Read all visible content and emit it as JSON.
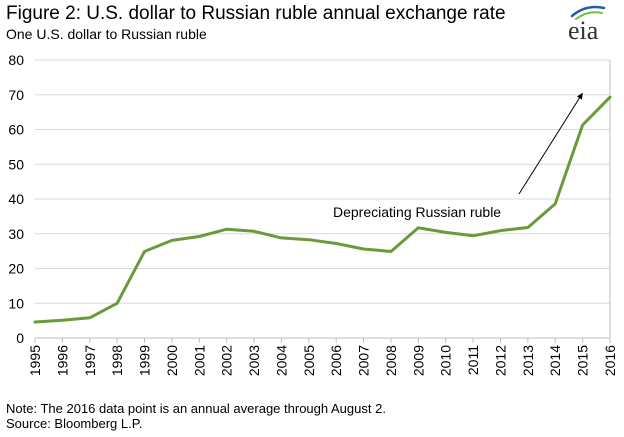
{
  "header": {
    "title": "Figure 2: U.S. dollar to Russian ruble annual exchange rate",
    "subtitle": "One U.S. dollar to Russian ruble",
    "logo_text": "eia"
  },
  "footer": {
    "note": "Note: The 2016 data point is an annual average through August 2.",
    "source": "Source: Bloomberg L.P."
  },
  "colors": {
    "series": "#6a9a3a",
    "gridline": "#d9d9d9",
    "axis": "#bfbfbf",
    "logo_blue": "#1f5fa6",
    "logo_green": "#6fbf3f"
  },
  "chart_data": {
    "type": "line",
    "title": "Figure 2: U.S. dollar to Russian ruble annual exchange rate",
    "xlabel": "",
    "ylabel": "One U.S. dollar to Russian ruble",
    "x": [
      "1995",
      "1996",
      "1997",
      "1998",
      "1999",
      "2000",
      "2001",
      "2002",
      "2003",
      "2004",
      "2005",
      "2006",
      "2007",
      "2008",
      "2009",
      "2010",
      "2011",
      "2012",
      "2013",
      "2014",
      "2015",
      "2016"
    ],
    "series": [
      {
        "values": [
          4.6,
          5.1,
          5.8,
          10.0,
          24.9,
          28.1,
          29.2,
          31.3,
          30.7,
          28.8,
          28.3,
          27.2,
          25.6,
          24.9,
          31.7,
          30.4,
          29.4,
          30.9,
          31.8,
          38.6,
          61.3,
          69.3
        ]
      }
    ],
    "ylim": [
      0,
      80
    ],
    "yticks": [
      "0",
      "10",
      "20",
      "30",
      "40",
      "50",
      "60",
      "70",
      "80"
    ],
    "grid": true,
    "legend": "none",
    "annotations": [
      {
        "text": "Depreciating Russian ruble",
        "arrow": true,
        "arrow_to_x": "2015",
        "arrow_to_y": 70.5
      }
    ]
  }
}
